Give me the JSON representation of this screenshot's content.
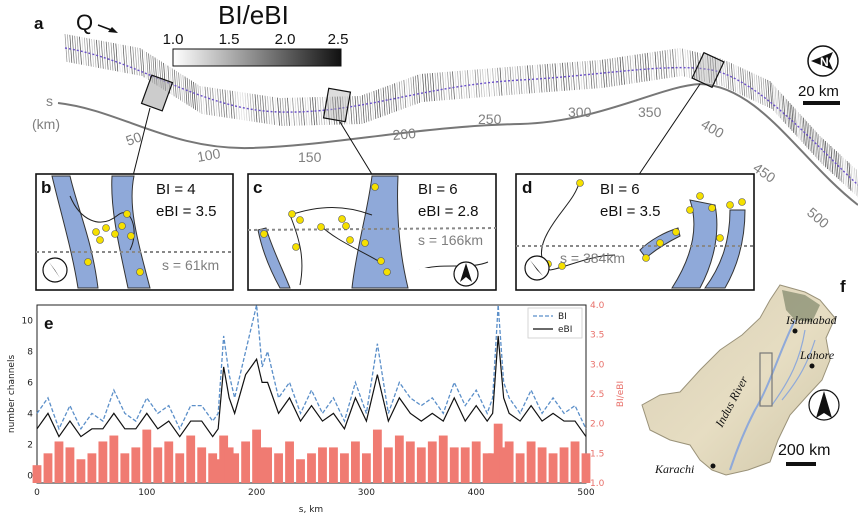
{
  "panel_labels": {
    "a": "a",
    "b": "b",
    "c": "c",
    "d": "d",
    "e": "e",
    "f": "f"
  },
  "panel_a": {
    "flow_label": "Q",
    "colorbar_title": "BI/eBI",
    "colorbar_ticks": [
      "1.0",
      "1.5",
      "2.0",
      "2.5"
    ],
    "s_label": "s",
    "s_unit": "(km)",
    "s_ticks": [
      "50",
      "100",
      "150",
      "200",
      "250",
      "300",
      "350",
      "400",
      "450",
      "500"
    ],
    "scale_label": "20 km",
    "icons": [
      "north-arrow-icon"
    ]
  },
  "insets": [
    {
      "bi_label": "BI   = 4",
      "ebi_label": "eBI = 3.5",
      "s_label": "s = 61km"
    },
    {
      "bi_label": "BI   = 6",
      "ebi_label": "eBI = 2.8",
      "s_label": "s = 166km"
    },
    {
      "bi_label": "BI   = 6",
      "ebi_label": "eBI = 3.5",
      "s_label": "s = 384km"
    }
  ],
  "map": {
    "cities": [
      "Islamabad",
      "Lahore",
      "Karachi"
    ],
    "river_label": "Indus   River",
    "scale_label": "200 km"
  },
  "colors": {
    "bi": "#5b8fc9",
    "ebi": "#111111",
    "ratio": "#f07b72",
    "river": "#8fa9d9",
    "nodes": "#f5e000",
    "path": "#6a4fc9"
  },
  "chart_data": {
    "type": "line",
    "xlabel": "s, km",
    "ylabel": "number channels",
    "y2label": "BI/eBI",
    "xlim": [
      0,
      500
    ],
    "ylim": [
      -0.5,
      11
    ],
    "y2lim": [
      1.0,
      4.0
    ],
    "xticks": [
      "0",
      "100",
      "200",
      "300",
      "400",
      "500"
    ],
    "yticks": [
      "0",
      "2",
      "4",
      "6",
      "8",
      "10"
    ],
    "y2ticks": [
      "1.0",
      "1.5",
      "2.0",
      "2.5",
      "3.0",
      "3.5",
      "4.0"
    ],
    "legend": [
      "BI",
      "eBI"
    ],
    "legend_position": "top-right",
    "x": [
      0,
      10,
      20,
      30,
      40,
      50,
      60,
      70,
      80,
      90,
      100,
      110,
      120,
      130,
      140,
      150,
      160,
      165,
      170,
      175,
      180,
      190,
      200,
      205,
      210,
      220,
      230,
      240,
      250,
      260,
      270,
      280,
      290,
      300,
      310,
      320,
      330,
      340,
      350,
      360,
      370,
      380,
      390,
      400,
      410,
      415,
      420,
      425,
      430,
      440,
      450,
      460,
      470,
      480,
      490,
      500
    ],
    "series": [
      {
        "name": "BI",
        "values": [
          4,
          5,
          3,
          4.5,
          3,
          4,
          3.5,
          5.5,
          4,
          3.5,
          5,
          4,
          4.5,
          3,
          4.5,
          4.5,
          3.5,
          4,
          9,
          6.5,
          5,
          8,
          11,
          7,
          8,
          5,
          6,
          4,
          5.5,
          4,
          5,
          3.5,
          6,
          4,
          8.5,
          4,
          6,
          5,
          4.5,
          5,
          4,
          6,
          4.5,
          5.5,
          4,
          5,
          11,
          6,
          5,
          4,
          5.5,
          4,
          5,
          4,
          4.5,
          3
        ]
      },
      {
        "name": "eBI",
        "values": [
          3,
          4,
          2.5,
          3.5,
          2.5,
          3,
          3,
          4,
          3,
          3,
          4,
          3,
          3.5,
          2.5,
          3.5,
          3.5,
          2.5,
          3,
          7,
          5,
          4,
          6.5,
          7.5,
          6,
          6,
          4,
          5,
          3.5,
          4.5,
          3.5,
          4,
          3,
          5,
          3.5,
          6.5,
          3.5,
          5,
          4,
          3.5,
          4,
          3.5,
          5,
          3.5,
          4.5,
          3.5,
          4,
          9,
          5,
          4,
          3.5,
          4.5,
          3.5,
          4,
          3.5,
          3.5,
          2.5
        ]
      },
      {
        "name": "BI/eBI",
        "values": [
          1.3,
          1.5,
          1.7,
          1.6,
          1.4,
          1.5,
          1.7,
          1.8,
          1.5,
          1.6,
          1.9,
          1.6,
          1.7,
          1.5,
          1.8,
          1.6,
          1.5,
          1.4,
          1.8,
          1.6,
          1.5,
          1.7,
          1.9,
          1.6,
          1.6,
          1.5,
          1.7,
          1.4,
          1.5,
          1.6,
          1.6,
          1.5,
          1.7,
          1.5,
          1.9,
          1.6,
          1.8,
          1.7,
          1.6,
          1.7,
          1.8,
          1.6,
          1.6,
          1.7,
          1.5,
          1.5,
          2.0,
          1.6,
          1.7,
          1.5,
          1.7,
          1.6,
          1.5,
          1.6,
          1.7,
          1.5
        ]
      }
    ]
  }
}
